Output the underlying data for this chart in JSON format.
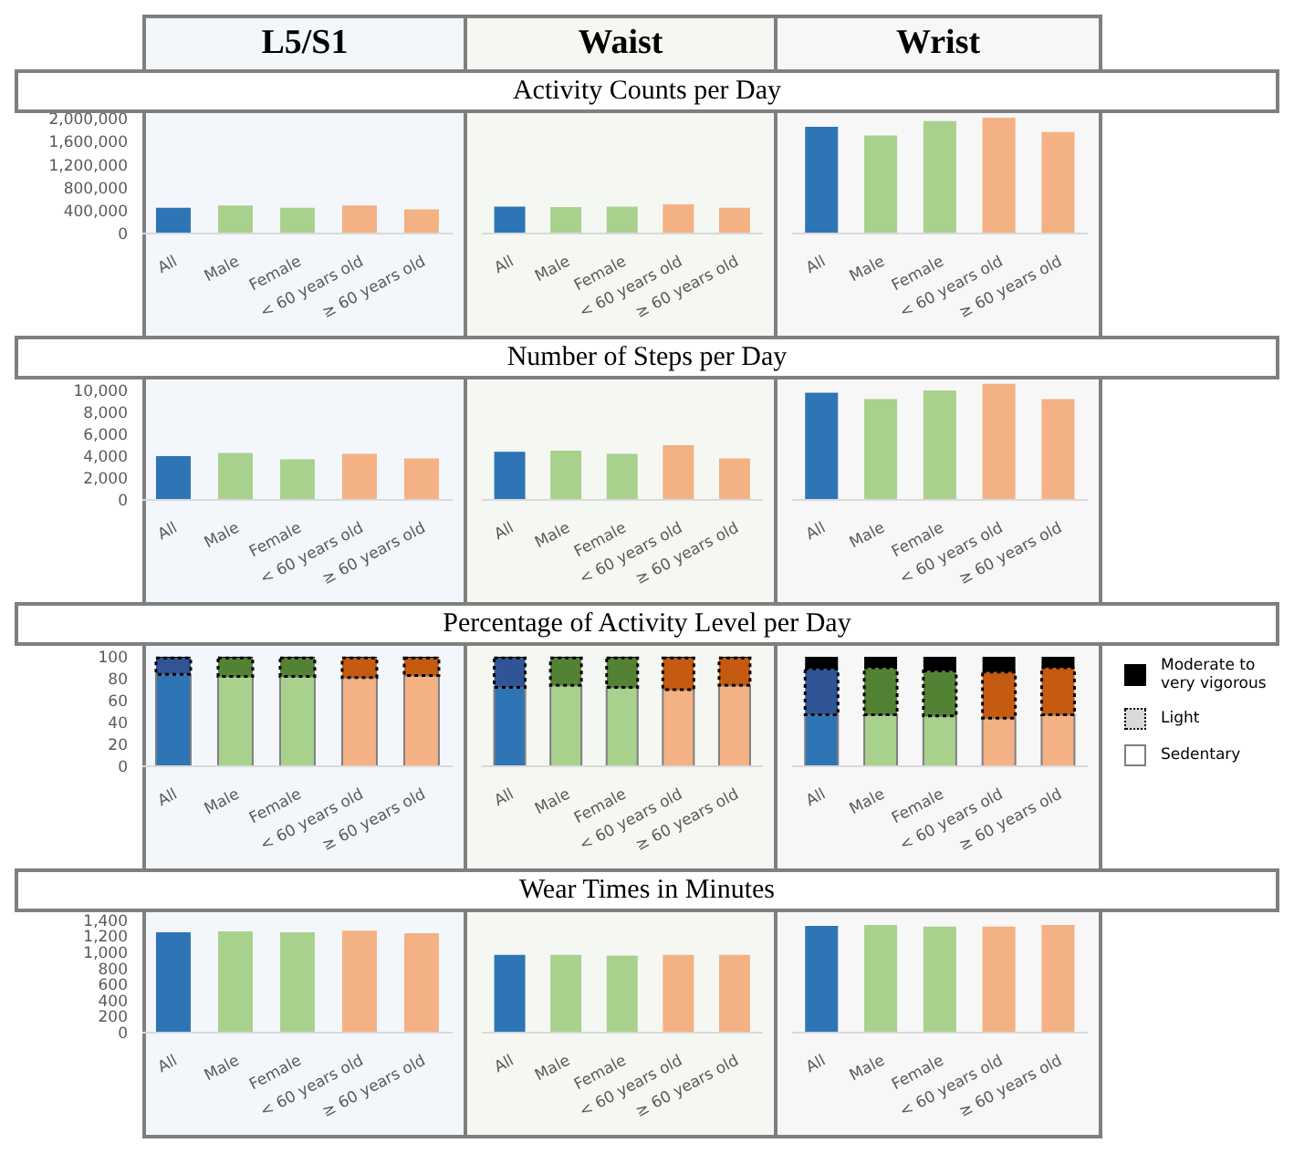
{
  "chart_data": [
    {
      "type": "bar",
      "subtitle": "L5/S1",
      "categories": [
        "All",
        "Male",
        "Female",
        "< 60 years old",
        "≥ 60 years old"
      ],
      "values": [
        450000,
        490000,
        450000,
        490000,
        420000
      ],
      "colors": [
        "#2e75b6",
        "#a9d18e",
        "#a9d18e",
        "#f4b183",
        "#f4b183"
      ],
      "ylim": [
        0,
        2100000
      ],
      "yticks": [
        0,
        {
          "value": 400000,
          "label": "400,000"
        },
        {
          "value": 800000,
          "label": "800,000"
        },
        {
          "value": 1200000,
          "label": "1,200,000"
        },
        {
          "value": 1600000,
          "label": "1,600,000"
        },
        {
          "value": 2000000,
          "label": "2,000,000"
        }
      ]
    },
    {
      "type": "bar",
      "title": "Activity Counts per Day",
      "subtitle": "Waist",
      "categories": [
        "All",
        "Male",
        "Female",
        "< 60 years old",
        "≥ 60 years old"
      ],
      "values": [
        470000,
        460000,
        470000,
        510000,
        450000
      ],
      "colors": [
        "#2e75b6",
        "#a9d18e",
        "#a9d18e",
        "#f4b183",
        "#f4b183"
      ],
      "ylim": [
        0,
        2100000
      ],
      "tick_labels": "x"
    },
    {
      "type": "bar",
      "subtitle": "Wrist",
      "categories": [
        "All",
        "Male",
        "Female",
        "< 60 years old",
        "≥ 60 years old"
      ],
      "values": [
        1860000,
        1710000,
        1960000,
        2020000,
        1770000
      ],
      "colors": [
        "#2e75b6",
        "#a9d18e",
        "#a9d18e",
        "#f4b183",
        "#f4b183"
      ],
      "ylim": [
        0,
        2100000
      ],
      "tick_labels": "x"
    },
    {
      "type": "bar",
      "categories": [
        "All",
        "Male",
        "Female",
        "< 60 years old",
        "≥ 60 years old"
      ],
      "values": [
        4000,
        4300,
        3700,
        4200,
        3800
      ],
      "colors": [
        "#2e75b6",
        "#a9d18e",
        "#a9d18e",
        "#f4b183",
        "#f4b183"
      ],
      "ylim": [
        0,
        11000
      ],
      "yticks": [
        0,
        {
          "value": 2000,
          "label": "2,000"
        },
        {
          "value": 4000,
          "label": "4,000"
        },
        {
          "value": 6000,
          "label": "6,000"
        },
        {
          "value": 8000,
          "label": "8,000"
        },
        {
          "value": 10000,
          "label": "10,000"
        }
      ]
    },
    {
      "type": "bar",
      "title": "Number of Steps per Day",
      "categories": [
        "All",
        "Male",
        "Female",
        "< 60 years old",
        "≥ 60 years old"
      ],
      "values": [
        4400,
        4500,
        4200,
        5000,
        3800
      ],
      "colors": [
        "#2e75b6",
        "#a9d18e",
        "#a9d18e",
        "#f4b183",
        "#f4b183"
      ],
      "ylim": [
        0,
        11000
      ],
      "tick_labels": "x"
    },
    {
      "type": "bar",
      "categories": [
        "All",
        "Male",
        "Female",
        "< 60 years old",
        "≥ 60 years old"
      ],
      "values": [
        9800,
        9200,
        10000,
        10600,
        9200
      ],
      "colors": [
        "#2e75b6",
        "#a9d18e",
        "#a9d18e",
        "#f4b183",
        "#f4b183"
      ],
      "ylim": [
        0,
        11000
      ],
      "tick_labels": "x"
    },
    {
      "type": "bar",
      "categories": [
        "All",
        "Male",
        "Female",
        "< 60 years old",
        "≥ 60 years old"
      ],
      "stacked": true,
      "ylim": [
        0,
        110
      ],
      "yticks": [
        0,
        20,
        40,
        60,
        80,
        100
      ],
      "legend": "right",
      "series": [
        {
          "name": "Sedentary",
          "color": "#ffffff",
          "line_style": "solid",
          "values": [
            84,
            82,
            82,
            81,
            83
          ],
          "colors": [
            "#2e75b6",
            "#a9d18e",
            "#a9d18e",
            "#f4b183",
            "#f4b183"
          ]
        },
        {
          "name": "Light",
          "color": "#d9d9d9",
          "line_style": "dotted",
          "values": [
            15,
            17,
            17,
            18,
            16
          ],
          "colors": [
            "#2f5597",
            "#548235",
            "#548235",
            "#c55a11",
            "#c55a11"
          ]
        },
        {
          "name": "Moderate to very vigorous",
          "color": "#000000",
          "values": [
            1,
            1,
            1,
            1,
            1
          ],
          "colors": [
            "#000000",
            "#000000",
            "#000000",
            "#000000",
            "#000000"
          ]
        }
      ]
    },
    {
      "type": "bar",
      "title": "Percentage of Activity Level per Day",
      "categories": [
        "All",
        "Male",
        "Female",
        "< 60 years old",
        "≥ 60 years old"
      ],
      "stacked": true,
      "ylim": [
        0,
        110
      ],
      "tick_labels": "x",
      "series": [
        {
          "color": "#ffffff",
          "line_style": "solid",
          "values": [
            72,
            74,
            72,
            70,
            74
          ],
          "colors": [
            "#2e75b6",
            "#a9d18e",
            "#a9d18e",
            "#f4b183",
            "#f4b183"
          ]
        },
        {
          "color": "#d9d9d9",
          "line_style": "dotted",
          "values": [
            27,
            25,
            27,
            29,
            25
          ],
          "colors": [
            "#2f5597",
            "#548235",
            "#548235",
            "#c55a11",
            "#c55a11"
          ]
        },
        {
          "color": "#000000",
          "values": [
            1,
            1,
            1,
            1,
            1
          ],
          "colors": [
            "#000000",
            "#000000",
            "#000000",
            "#000000",
            "#000000"
          ]
        }
      ]
    },
    {
      "type": "bar",
      "categories": [
        "All",
        "Male",
        "Female",
        "< 60 years old",
        "≥ 60 years old"
      ],
      "stacked": true,
      "ylim": [
        0,
        110
      ],
      "tick_labels": "x",
      "series": [
        {
          "color": "#ffffff",
          "line_style": "solid",
          "values": [
            47,
            47,
            46,
            44,
            47
          ],
          "colors": [
            "#2e75b6",
            "#a9d18e",
            "#a9d18e",
            "#f4b183",
            "#f4b183"
          ]
        },
        {
          "color": "#d9d9d9",
          "line_style": "dotted",
          "values": [
            42,
            43,
            41,
            42,
            43
          ],
          "colors": [
            "#2f5597",
            "#548235",
            "#548235",
            "#c55a11",
            "#c55a11"
          ]
        },
        {
          "color": "#000000",
          "values": [
            11,
            10,
            13,
            14,
            10
          ],
          "colors": [
            "#000000",
            "#000000",
            "#000000",
            "#000000",
            "#000000"
          ]
        }
      ]
    },
    {
      "type": "bar",
      "categories": [
        "All",
        "Male",
        "Female",
        "< 60 years old",
        "≥ 60 years old"
      ],
      "values": [
        1250,
        1260,
        1250,
        1270,
        1240
      ],
      "colors": [
        "#2e75b6",
        "#a9d18e",
        "#a9d18e",
        "#f4b183",
        "#f4b183"
      ],
      "ylim": [
        0,
        1500
      ],
      "yticks": [
        0,
        200,
        400,
        600,
        800,
        {
          "value": 1000,
          "label": "1,000"
        },
        {
          "value": 1200,
          "label": "1,200"
        },
        {
          "value": 1400,
          "label": "1,400"
        }
      ]
    },
    {
      "type": "bar",
      "title": "Wear Times in Minutes",
      "categories": [
        "All",
        "Male",
        "Female",
        "< 60 years old",
        "≥ 60 years old"
      ],
      "values": [
        970,
        970,
        960,
        970,
        970
      ],
      "colors": [
        "#2e75b6",
        "#a9d18e",
        "#a9d18e",
        "#f4b183",
        "#f4b183"
      ],
      "ylim": [
        0,
        1500
      ],
      "tick_labels": "x"
    },
    {
      "type": "bar",
      "categories": [
        "All",
        "Male",
        "Female",
        "< 60 years old",
        "≥ 60 years old"
      ],
      "values": [
        1330,
        1340,
        1320,
        1320,
        1340
      ],
      "colors": [
        "#2e75b6",
        "#a9d18e",
        "#a9d18e",
        "#f4b183",
        "#f4b183"
      ],
      "ylim": [
        0,
        1500
      ],
      "tick_labels": "x"
    }
  ]
}
